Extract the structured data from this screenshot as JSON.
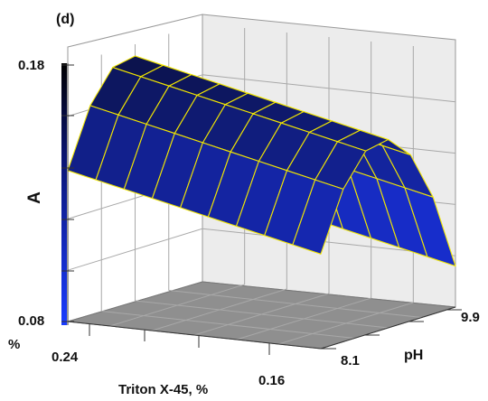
{
  "panel_label": "(d)",
  "chart_data": {
    "type": "surface",
    "zlabel": "A",
    "xlabel": "Triton X-45, %",
    "ylabel": "pH",
    "x_ticks": [
      "0.24",
      "0.16"
    ],
    "x_axis_unit_fragment": "%",
    "y_ticks": [
      "8.1",
      "9.9"
    ],
    "z_ticks": [
      "0.18",
      "0.08"
    ],
    "zlim": [
      0.08,
      0.18
    ],
    "triton_values": [
      0.24,
      0.2311,
      0.2222,
      0.2133,
      0.2044,
      0.1956,
      0.1867,
      0.1778,
      0.1689,
      0.16
    ],
    "ph_values": [
      8.1,
      8.4,
      8.7,
      9.0,
      9.3,
      9.6,
      9.9
    ],
    "surface_description": "A peaks near mid pH (~8.9) and decreases slightly as Triton X-45 goes from 0.24 to 0.16",
    "peak_A": 0.175,
    "grid": true,
    "colormap": "black-to-blue",
    "colors": {
      "mesh": "#f2e600",
      "surface_dark": "#0a0f3c",
      "surface_light": "#1a33e6",
      "floor": "#8f8f8f"
    }
  }
}
